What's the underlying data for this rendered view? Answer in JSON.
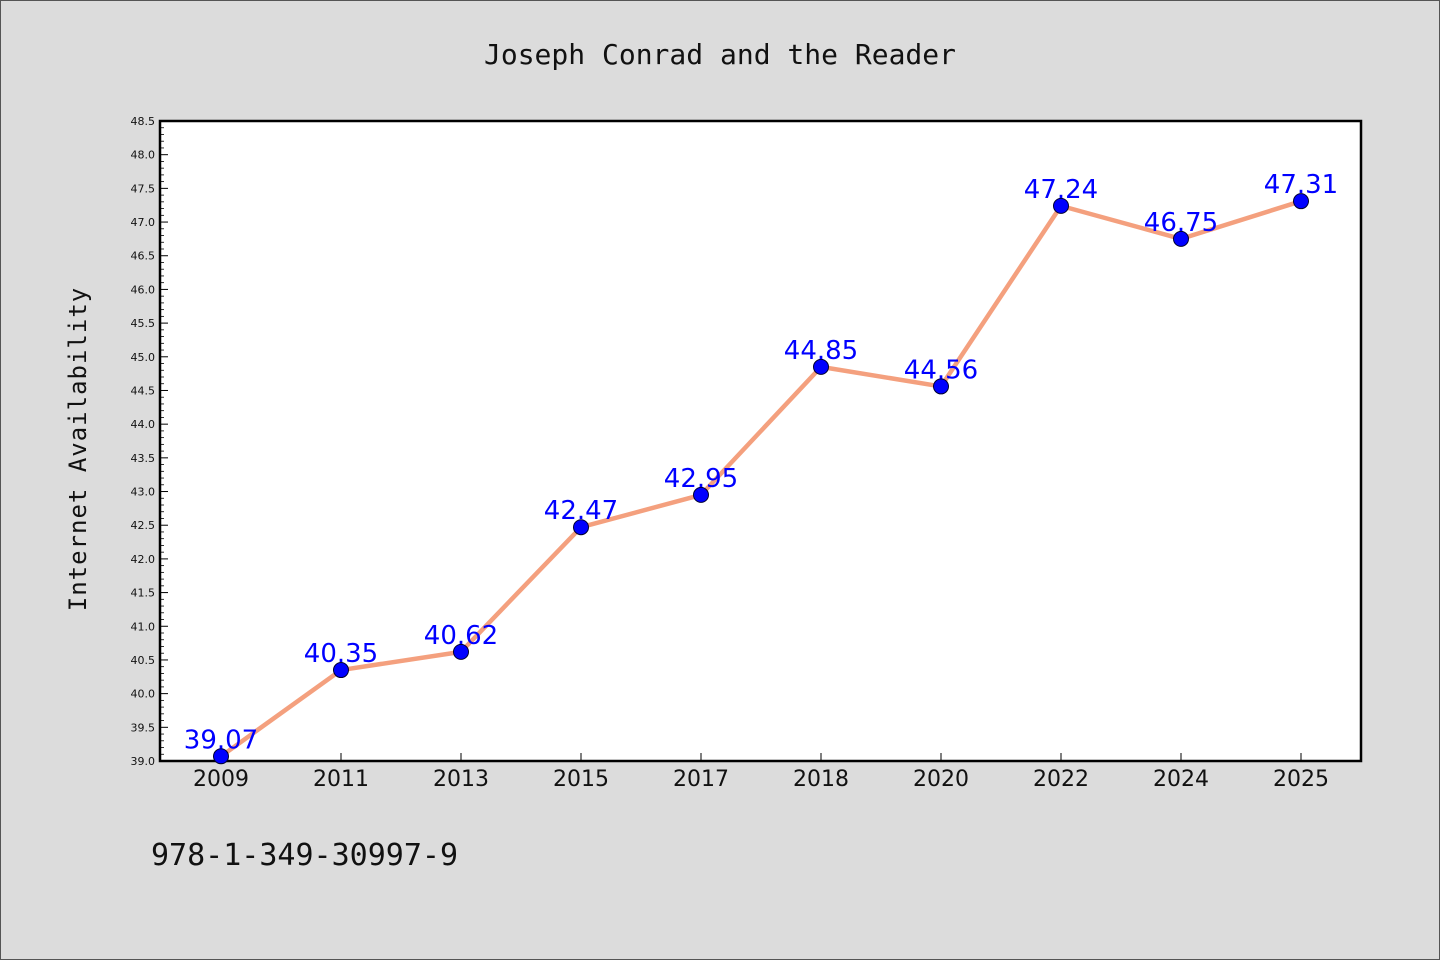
{
  "chart_data": {
    "type": "line",
    "title": "Joseph Conrad and the Reader",
    "xlabel": "",
    "ylabel": "Internet Availability",
    "categories": [
      "2009",
      "2011",
      "2013",
      "2015",
      "2017",
      "2018",
      "2020",
      "2022",
      "2024",
      "2025"
    ],
    "series": [
      {
        "values": [
          39.07,
          40.35,
          40.62,
          42.47,
          42.95,
          44.85,
          44.56,
          47.24,
          46.75,
          47.31
        ],
        "labels": [
          "39.07",
          "40.35",
          "40.62",
          "42.47",
          "42.95",
          "44.85",
          "44.56",
          "47.24",
          "46.75",
          "47.31"
        ]
      }
    ],
    "ylim": [
      39.0,
      48.5
    ],
    "yticks": [
      "39.0",
      "39.5",
      "40.0",
      "40.5",
      "41.0",
      "41.5",
      "42.0",
      "42.5",
      "43.0",
      "43.5",
      "44.0",
      "44.5",
      "45.0",
      "45.5",
      "46.0",
      "46.5",
      "47.0",
      "47.5",
      "48.0",
      "48.5"
    ],
    "grid": false,
    "line_color": "#f4a07e",
    "marker_color": "#0000ff",
    "label_color": "#0000ff"
  },
  "footer": {
    "text": "978-1-349-30997-9"
  }
}
